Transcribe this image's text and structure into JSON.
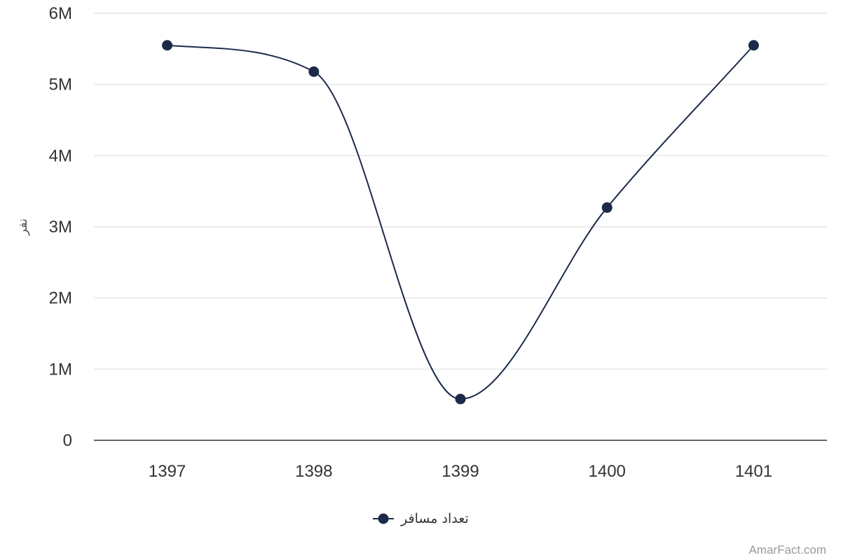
{
  "chart_data": {
    "type": "line",
    "smooth": true,
    "categories": [
      "1397",
      "1398",
      "1399",
      "1400",
      "1401"
    ],
    "series": [
      {
        "name": "تعداد مسافر",
        "values": [
          5550000,
          5180000,
          580000,
          3270000,
          5550000
        ],
        "color": "#1c2a4a"
      }
    ],
    "y_ticks": [
      "0",
      "1M",
      "2M",
      "3M",
      "4M",
      "5M",
      "6M"
    ],
    "ylim": [
      0,
      6000000
    ],
    "ylabel": "نفر",
    "xlabel": "",
    "grid": true,
    "legend_position": "bottom-center"
  },
  "credit": "AmarFact.com",
  "colors": {
    "series": "#1c2a4a",
    "grid": "#e6e6e6",
    "axis": "#333333",
    "tick_text": "#333333",
    "credit": "#999999"
  }
}
